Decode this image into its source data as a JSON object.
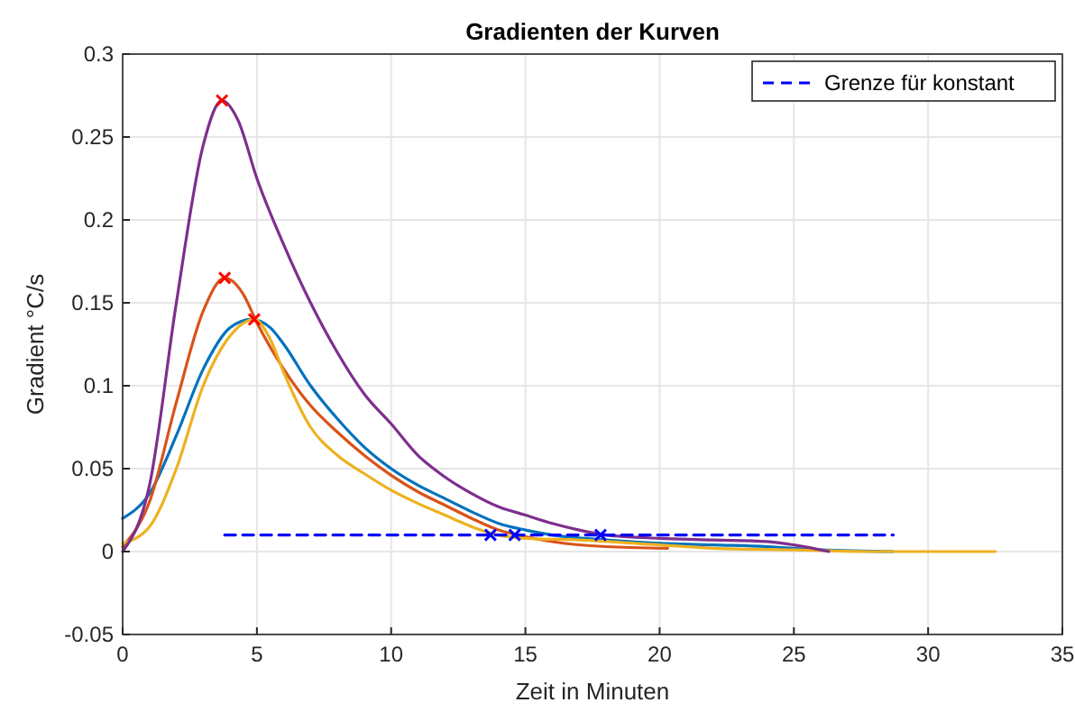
{
  "chart_data": {
    "type": "line",
    "title": "Gradienten der Kurven",
    "xlabel": "Zeit in Minuten",
    "ylabel": "Gradient °C/s",
    "xlim": [
      0,
      35
    ],
    "xticks": [
      0,
      5,
      10,
      15,
      20,
      25,
      30,
      35
    ],
    "ylim": [
      -0.05,
      0.3
    ],
    "yticks": [
      -0.05,
      0,
      0.05,
      0.1,
      0.15,
      0.2,
      0.25,
      0.3
    ],
    "grid": true,
    "legend": "top right",
    "series": [
      {
        "color": "#0072bd",
        "x": [
          0,
          1,
          2,
          3,
          4,
          4.8,
          5.5,
          6,
          7,
          8,
          9,
          10,
          11,
          12,
          13,
          14,
          15,
          16,
          18,
          20,
          22,
          24,
          26,
          28.7
        ],
        "values": [
          0.02,
          0.035,
          0.07,
          0.11,
          0.135,
          0.14,
          0.135,
          0.125,
          0.1,
          0.08,
          0.063,
          0.05,
          0.04,
          0.032,
          0.024,
          0.017,
          0.013,
          0.01,
          0.007,
          0.005,
          0.004,
          0.003,
          0.001,
          0
        ]
      },
      {
        "color": "#d95319",
        "x": [
          0,
          1,
          2,
          3,
          3.8,
          4.5,
          5,
          6,
          7,
          8,
          9,
          10,
          11,
          12,
          13,
          14,
          15,
          16,
          18,
          20.3
        ],
        "values": [
          0.003,
          0.03,
          0.09,
          0.145,
          0.165,
          0.155,
          0.138,
          0.11,
          0.088,
          0.072,
          0.058,
          0.046,
          0.036,
          0.028,
          0.02,
          0.013,
          0.009,
          0.006,
          0.003,
          0.002
        ]
      },
      {
        "color": "#edb120",
        "x": [
          0,
          1,
          2,
          3,
          4,
          4.9,
          5.5,
          6,
          7,
          8,
          9,
          10,
          11,
          12,
          13,
          14,
          15,
          17,
          20,
          22,
          25,
          28,
          32.5
        ],
        "values": [
          0.005,
          0.015,
          0.05,
          0.1,
          0.13,
          0.14,
          0.128,
          0.108,
          0.075,
          0.058,
          0.047,
          0.037,
          0.029,
          0.022,
          0.015,
          0.01,
          0.008,
          0.007,
          0.004,
          0.002,
          0.001,
          0,
          0
        ]
      },
      {
        "color": "#7e2f8e",
        "x": [
          0,
          1,
          2,
          3,
          3.7,
          4.3,
          5,
          6,
          7,
          8,
          9,
          10,
          11,
          12,
          13,
          14,
          15,
          16,
          17,
          18,
          20,
          22,
          24,
          25,
          26.3
        ],
        "values": [
          0,
          0.04,
          0.15,
          0.245,
          0.272,
          0.26,
          0.225,
          0.185,
          0.15,
          0.12,
          0.095,
          0.077,
          0.058,
          0.045,
          0.035,
          0.027,
          0.022,
          0.017,
          0.013,
          0.01,
          0.008,
          0.007,
          0.006,
          0.004,
          0
        ]
      },
      {
        "name": "Grenze für konstant",
        "color": "#0000ff",
        "line_style": "dashed",
        "x": [
          3.8,
          28.7
        ],
        "values": [
          0.01,
          0.01
        ]
      },
      {
        "type": "scatter",
        "marker": "cross",
        "color": "#ff0000",
        "x": [
          3.7,
          3.8,
          4.9
        ],
        "values": [
          0.272,
          0.165,
          0.14
        ]
      },
      {
        "type": "scatter",
        "marker": "cross",
        "color": "#0000ff",
        "x": [
          13.7,
          14.6,
          17.8
        ],
        "values": [
          0.01,
          0.01,
          0.01
        ]
      }
    ]
  }
}
